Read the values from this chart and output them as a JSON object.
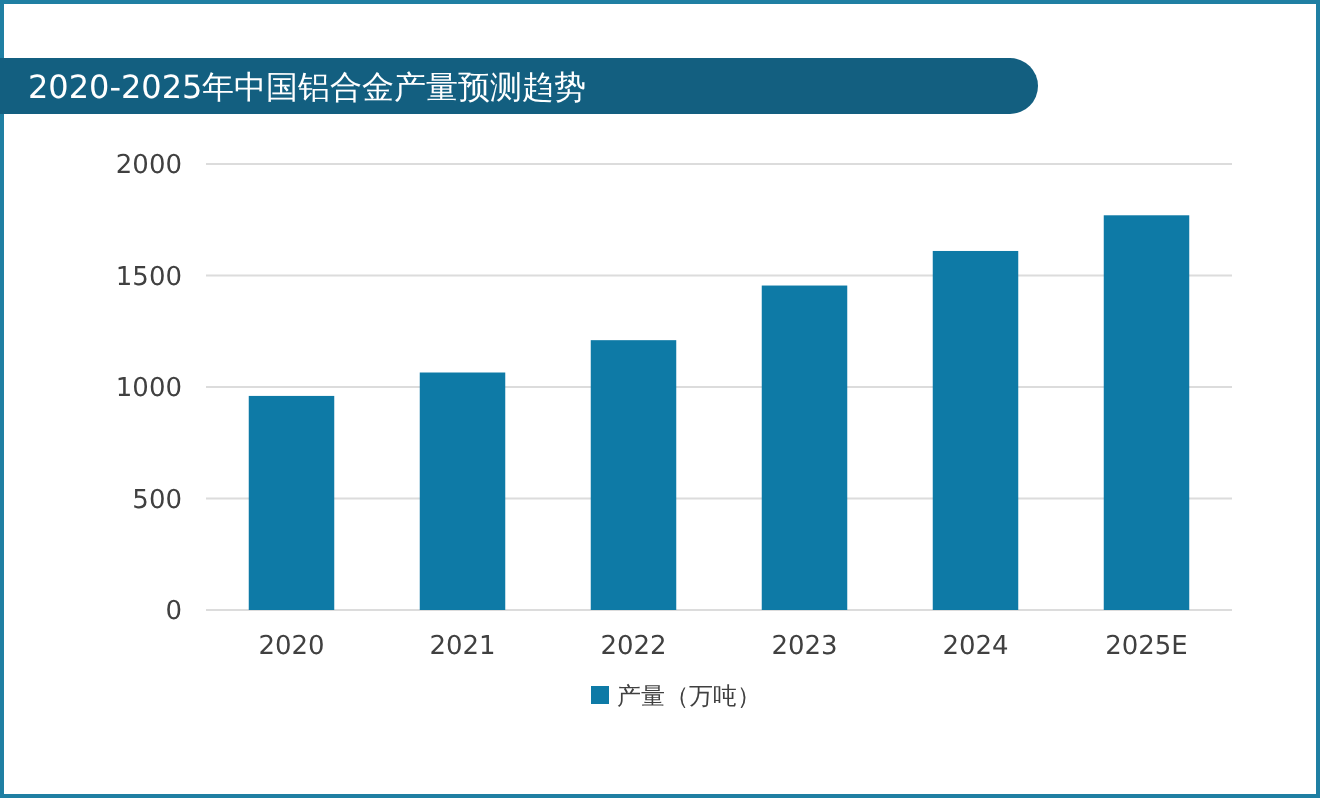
{
  "chart_data": {
    "type": "bar",
    "title": "2020-2025年中国铝合金产量预测趋势",
    "categories": [
      "2020",
      "2021",
      "2022",
      "2023",
      "2024",
      "2025E"
    ],
    "series": [
      {
        "name": "产量（万吨）",
        "color": "#0e7aa6",
        "values": [
          960,
          1065,
          1210,
          1455,
          1610,
          1770
        ]
      }
    ],
    "ylim": [
      0,
      2000
    ],
    "yticks": [
      0,
      500,
      1000,
      1500,
      2000
    ],
    "grid": "y",
    "legend": "bottom"
  }
}
